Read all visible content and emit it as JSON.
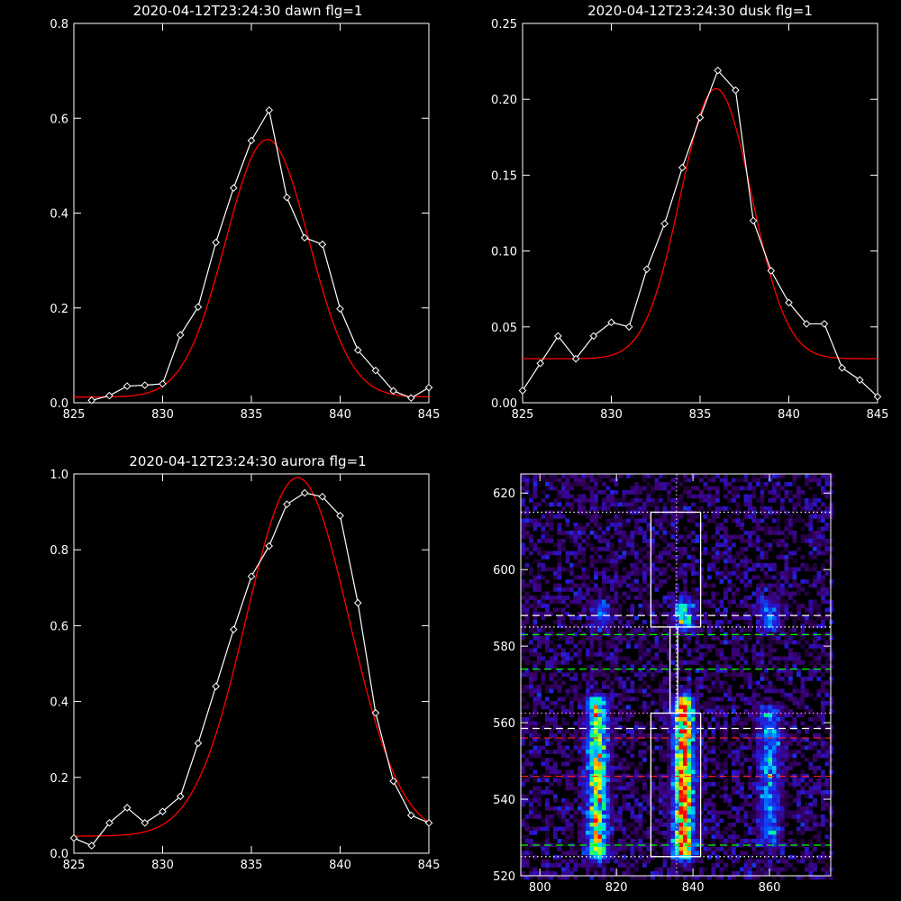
{
  "colors": {
    "background": "#000000",
    "axis": "#ffffff",
    "data_line": "#ffffff",
    "fit_line": "#ff0000",
    "green_dash": "#00ff00",
    "red_dash": "#ff2020"
  },
  "chart_data": [
    {
      "type": "line",
      "title": "2020-04-12T23:24:30 dawn flg=1",
      "xlim": [
        825,
        845
      ],
      "ylim": [
        0,
        0.8
      ],
      "xticks": [
        825,
        830,
        835,
        840,
        845
      ],
      "yticks": [
        0.0,
        0.2,
        0.4,
        0.6,
        0.8
      ],
      "xtick_labels": [
        "825",
        "830",
        "835",
        "840",
        "845"
      ],
      "ytick_labels": [
        "0.0",
        "0.2",
        "0.4",
        "0.6",
        "0.8"
      ],
      "grid": false,
      "series": [
        {
          "marker": "diamond",
          "color": "#ffffff",
          "x": [
            826,
            827,
            828,
            829,
            830,
            831,
            832,
            833,
            834,
            835,
            836,
            837,
            838,
            839,
            840,
            841,
            842,
            843,
            844,
            845
          ],
          "y": [
            0.005,
            0.015,
            0.035,
            0.037,
            0.04,
            0.143,
            0.202,
            0.338,
            0.453,
            0.553,
            0.617,
            0.433,
            0.348,
            0.334,
            0.198,
            0.111,
            0.068,
            0.025,
            0.01,
            0.032
          ]
        },
        {
          "marker": "none",
          "color": "#ff0000",
          "fit": "gaussian",
          "center": 835.9,
          "sigma": 2.35,
          "amplitude": 0.543,
          "baseline": 0.012
        }
      ]
    },
    {
      "type": "line",
      "title": "2020-04-12T23:24:30 dusk flg=1",
      "xlim": [
        825,
        845
      ],
      "ylim": [
        0,
        0.25
      ],
      "xticks": [
        825,
        830,
        835,
        840,
        845
      ],
      "yticks": [
        0.0,
        0.05,
        0.1,
        0.15,
        0.2,
        0.25
      ],
      "xtick_labels": [
        "825",
        "830",
        "835",
        "840",
        "845"
      ],
      "ytick_labels": [
        "0.00",
        "0.05",
        "0.10",
        "0.15",
        "0.20",
        "0.25"
      ],
      "grid": false,
      "series": [
        {
          "marker": "diamond",
          "color": "#ffffff",
          "x": [
            825,
            826,
            827,
            828,
            829,
            830,
            831,
            832,
            833,
            834,
            835,
            836,
            837,
            838,
            839,
            840,
            841,
            842,
            843,
            844,
            845
          ],
          "y": [
            0.008,
            0.026,
            0.044,
            0.029,
            0.044,
            0.053,
            0.05,
            0.088,
            0.118,
            0.155,
            0.188,
            0.219,
            0.206,
            0.12,
            0.087,
            0.066,
            0.052,
            0.052,
            0.023,
            0.015,
            0.004
          ]
        },
        {
          "marker": "none",
          "color": "#ff0000",
          "fit": "gaussian",
          "center": 835.9,
          "sigma": 2.0,
          "amplitude": 0.178,
          "baseline": 0.029
        }
      ]
    },
    {
      "type": "line",
      "title": "2020-04-12T23:24:30 aurora flg=1",
      "xlim": [
        825,
        845
      ],
      "ylim": [
        0,
        1.0
      ],
      "xticks": [
        825,
        830,
        835,
        840,
        845
      ],
      "yticks": [
        0.0,
        0.2,
        0.4,
        0.6,
        0.8,
        1.0
      ],
      "xtick_labels": [
        "825",
        "830",
        "835",
        "840",
        "845"
      ],
      "ytick_labels": [
        "0.0",
        "0.2",
        "0.4",
        "0.6",
        "0.8",
        "1.0"
      ],
      "grid": false,
      "series": [
        {
          "marker": "diamond",
          "color": "#ffffff",
          "x": [
            825,
            826,
            827,
            828,
            829,
            830,
            831,
            832,
            833,
            834,
            835,
            836,
            837,
            838,
            839,
            840,
            841,
            842,
            843,
            844,
            845
          ],
          "y": [
            0.04,
            0.02,
            0.08,
            0.12,
            0.08,
            0.11,
            0.15,
            0.29,
            0.44,
            0.59,
            0.73,
            0.81,
            0.92,
            0.95,
            0.94,
            0.89,
            0.66,
            0.37,
            0.19,
            0.1,
            0.08
          ]
        },
        {
          "marker": "none",
          "color": "#ff0000",
          "fit": "gaussian",
          "center": 837.6,
          "sigma": 2.9,
          "amplitude": 0.945,
          "baseline": 0.045
        }
      ]
    },
    {
      "type": "heatmap",
      "title": "",
      "xlim": [
        795,
        876
      ],
      "ylim": [
        520,
        625
      ],
      "xticks": [
        800,
        820,
        840,
        860
      ],
      "yticks": [
        520,
        540,
        560,
        580,
        600,
        620
      ],
      "xtick_labels": [
        "800",
        "820",
        "840",
        "860"
      ],
      "ytick_labels": [
        "520",
        "540",
        "560",
        "580",
        "600",
        "620"
      ],
      "colormap": "rainbow",
      "bands": [
        {
          "x_center": 815,
          "y_range": [
            526,
            565
          ],
          "peak": 0.75
        },
        {
          "x_center": 837.5,
          "y_range": [
            526,
            565
          ],
          "peak": 1.0
        },
        {
          "x_center": 860,
          "y_range": [
            530,
            562
          ],
          "peak": 0.45
        },
        {
          "x_center": 837.5,
          "y_range": [
            586,
            590
          ],
          "peak": 0.6
        },
        {
          "x_center": 860,
          "y_range": [
            586,
            590
          ],
          "peak": 0.4
        },
        {
          "x_center": 816,
          "y_range": [
            586,
            590
          ],
          "peak": 0.35
        }
      ],
      "boxes": [
        {
          "x": [
            829,
            842
          ],
          "y": [
            525,
            562.5
          ]
        },
        {
          "x": [
            829,
            842
          ],
          "y": [
            585,
            615
          ]
        }
      ],
      "connector": {
        "x": [
          834,
          836
        ],
        "y": [
          562.5,
          585
        ]
      },
      "vline": {
        "x": 835.7,
        "style": "dotted"
      },
      "hlines": [
        {
          "y": 615,
          "color": "#ffffff",
          "style": "dotted"
        },
        {
          "y": 588,
          "color": "#ffffff",
          "style": "dashed"
        },
        {
          "y": 585,
          "color": "#ffffff",
          "style": "dotted"
        },
        {
          "y": 583,
          "color": "#00ff00",
          "style": "dashed"
        },
        {
          "y": 574,
          "color": "#00ff00",
          "style": "dashed"
        },
        {
          "y": 562.5,
          "color": "#ff80ff",
          "style": "dotted"
        },
        {
          "y": 558.5,
          "color": "#ffffff",
          "style": "dashed"
        },
        {
          "y": 556,
          "color": "#ff2020",
          "style": "dashed"
        },
        {
          "y": 546,
          "color": "#ff2020",
          "style": "dashed"
        },
        {
          "y": 528,
          "color": "#00ff00",
          "style": "dashed"
        },
        {
          "y": 525,
          "color": "#ffffff",
          "style": "dotted"
        }
      ]
    }
  ]
}
